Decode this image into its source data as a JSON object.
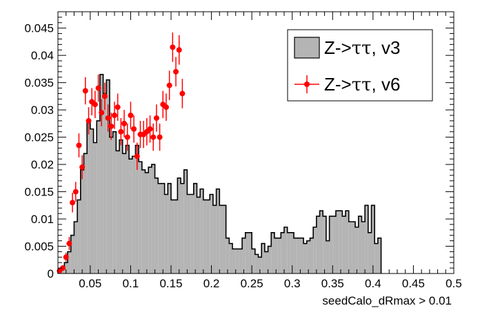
{
  "chart_data": {
    "type": "histogram",
    "xlabel": "seedCalo_dRmax > 0.01",
    "ylabel": "",
    "xlim": [
      0.01,
      0.5
    ],
    "ylim": [
      0,
      0.048
    ],
    "x_ticks": [
      "0.05",
      "0.1",
      "0.15",
      "0.2",
      "0.25",
      "0.3",
      "0.35",
      "0.4",
      "0.45",
      "0.5"
    ],
    "y_ticks": [
      "0",
      "0.005",
      "0.01",
      "0.015",
      "0.02",
      "0.025",
      "0.03",
      "0.035",
      "0.04",
      "0.045"
    ],
    "legend_position": "top-right",
    "series": [
      {
        "name_parts": [
          "Z->",
          "ττ",
          ", v3"
        ],
        "style": "filled-step",
        "color": "#b4b4b4",
        "bin_width": 0.004,
        "x_start": 0.01,
        "values": [
          0.0005,
          0.001,
          0.002,
          0.004,
          0.007,
          0.0095,
          0.0135,
          0.019,
          0.022,
          0.028,
          0.0265,
          0.024,
          0.028,
          0.0365,
          0.033,
          0.0355,
          0.025,
          0.026,
          0.0225,
          0.0245,
          0.022,
          0.0235,
          0.021,
          0.0215,
          0.0235,
          0.0205,
          0.019,
          0.0185,
          0.0195,
          0.02,
          0.0175,
          0.0165,
          0.0165,
          0.0145,
          0.0165,
          0.0135,
          0.0135,
          0.0175,
          0.0165,
          0.019,
          0.0145,
          0.0145,
          0.0165,
          0.014,
          0.0155,
          0.0135,
          0.0135,
          0.0145,
          0.0125,
          0.0155,
          0.0125,
          0.0125,
          0.0065,
          0.0055,
          0.0045,
          0.0045,
          0.0045,
          0.0065,
          0.0075,
          0.0075,
          0.0045,
          0.0035,
          0.003,
          0.0055,
          0.004,
          0.005,
          0.0075,
          0.0065,
          0.0065,
          0.0075,
          0.0085,
          0.0075,
          0.0075,
          0.0065,
          0.0065,
          0.0065,
          0.0055,
          0.006,
          0.0065,
          0.0085,
          0.0105,
          0.0115,
          0.0105,
          0.006,
          0.0105,
          0.0105,
          0.0115,
          0.0115,
          0.0105,
          0.0115,
          0.0095,
          0.0095,
          0.0085,
          0.0105,
          0.0095,
          0.0125,
          0.0075,
          0.0125,
          0.0055,
          0.0065
        ]
      },
      {
        "name_parts": [
          "Z->",
          "ττ",
          ", v6"
        ],
        "style": "points-with-errors",
        "color": "#ff0000",
        "points": [
          {
            "x": 0.012,
            "y": 0.0005,
            "err": 0.0004
          },
          {
            "x": 0.016,
            "y": 0.001,
            "err": 0.0005
          },
          {
            "x": 0.02,
            "y": 0.003,
            "err": 0.0008
          },
          {
            "x": 0.024,
            "y": 0.0055,
            "err": 0.0012
          },
          {
            "x": 0.028,
            "y": 0.013,
            "err": 0.0018
          },
          {
            "x": 0.032,
            "y": 0.015,
            "err": 0.0018
          },
          {
            "x": 0.036,
            "y": 0.0235,
            "err": 0.0022
          },
          {
            "x": 0.04,
            "y": 0.0195,
            "err": 0.0022
          },
          {
            "x": 0.044,
            "y": 0.0335,
            "err": 0.0025
          },
          {
            "x": 0.048,
            "y": 0.028,
            "err": 0.0025
          },
          {
            "x": 0.052,
            "y": 0.0315,
            "err": 0.0025
          },
          {
            "x": 0.056,
            "y": 0.031,
            "err": 0.0025
          },
          {
            "x": 0.06,
            "y": 0.034,
            "err": 0.0025
          },
          {
            "x": 0.064,
            "y": 0.0295,
            "err": 0.0025
          },
          {
            "x": 0.068,
            "y": 0.0325,
            "err": 0.0025
          },
          {
            "x": 0.072,
            "y": 0.0285,
            "err": 0.0025
          },
          {
            "x": 0.076,
            "y": 0.027,
            "err": 0.0025
          },
          {
            "x": 0.08,
            "y": 0.029,
            "err": 0.0025
          },
          {
            "x": 0.084,
            "y": 0.0305,
            "err": 0.0025
          },
          {
            "x": 0.088,
            "y": 0.026,
            "err": 0.0025
          },
          {
            "x": 0.092,
            "y": 0.0275,
            "err": 0.0025
          },
          {
            "x": 0.096,
            "y": 0.025,
            "err": 0.0025
          },
          {
            "x": 0.1,
            "y": 0.029,
            "err": 0.0025
          },
          {
            "x": 0.104,
            "y": 0.0265,
            "err": 0.0025
          },
          {
            "x": 0.108,
            "y": 0.0215,
            "err": 0.0025
          },
          {
            "x": 0.112,
            "y": 0.0255,
            "err": 0.0025
          },
          {
            "x": 0.116,
            "y": 0.0255,
            "err": 0.0025
          },
          {
            "x": 0.12,
            "y": 0.026,
            "err": 0.0025
          },
          {
            "x": 0.124,
            "y": 0.0265,
            "err": 0.0025
          },
          {
            "x": 0.128,
            "y": 0.025,
            "err": 0.0025
          },
          {
            "x": 0.132,
            "y": 0.0285,
            "err": 0.0025
          },
          {
            "x": 0.136,
            "y": 0.025,
            "err": 0.0025
          },
          {
            "x": 0.14,
            "y": 0.031,
            "err": 0.0025
          },
          {
            "x": 0.144,
            "y": 0.0305,
            "err": 0.0025
          },
          {
            "x": 0.148,
            "y": 0.0345,
            "err": 0.0027
          },
          {
            "x": 0.152,
            "y": 0.0415,
            "err": 0.0027
          },
          {
            "x": 0.156,
            "y": 0.037,
            "err": 0.0027
          },
          {
            "x": 0.16,
            "y": 0.041,
            "err": 0.0027
          },
          {
            "x": 0.164,
            "y": 0.033,
            "err": 0.0027
          }
        ]
      }
    ]
  }
}
